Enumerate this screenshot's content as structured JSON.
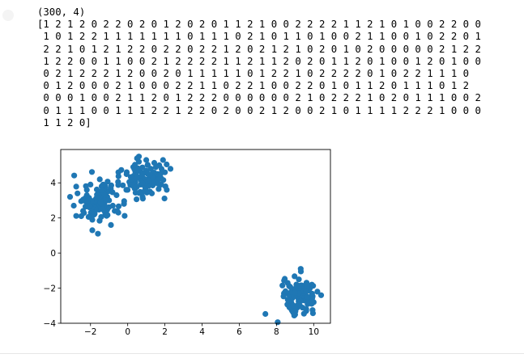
{
  "output": {
    "shape_line": "(300, 4)",
    "label_lines": [
      "[1 2 1 2 0 2 2 0 2 0 1 2 0 2 0 1 1 2 1 0 0 2 2 2 2 1 1 2 1 0 1 0 0 2 2 0 0",
      " 1 0 1 2 2 1 1 1 1 1 1 1 0 1 1 1 0 2 1 0 1 1 0 1 0 0 2 1 1 0 0 1 0 2 2 0 1",
      " 2 2 1 0 1 2 1 2 2 0 2 2 0 2 2 1 2 0 2 1 2 1 0 2 0 1 0 2 0 0 0 0 0 2 1 2 2",
      " 1 2 2 0 0 1 1 0 0 2 1 2 2 2 2 1 1 2 1 1 2 0 2 0 1 1 2 0 1 0 0 1 2 0 1 0 0",
      " 0 2 1 2 2 2 1 2 0 0 2 0 1 1 1 1 1 0 1 2 2 1 0 2 2 2 2 0 1 0 2 2 1 1 1 0",
      " 0 1 2 0 0 0 2 1 0 0 0 2 2 1 1 0 2 2 1 0 0 2 2 0 1 0 1 1 2 0 1 1 1 0 1 2",
      " 0 0 0 1 0 0 2 1 1 2 0 1 2 2 2 0 0 0 0 0 0 2 1 0 2 2 2 1 0 2 0 1 1 1 0 0 2",
      " 0 1 1 1 0 0 1 1 1 2 2 1 2 2 0 2 0 0 2 1 2 0 0 2 1 0 1 1 1 1 2 2 2 1 0 0 0",
      " 1 1 2 0]"
    ]
  },
  "chart_data": {
    "type": "scatter",
    "title": "",
    "xlabel": "",
    "ylabel": "",
    "xlim": [
      -3.6,
      10.9
    ],
    "ylim": [
      -4.0,
      5.9
    ],
    "xticks": [
      -2,
      0,
      2,
      4,
      6,
      8,
      10
    ],
    "yticks": [
      -4,
      -2,
      0,
      2,
      4
    ],
    "grid": false,
    "color": "#1f77b4",
    "clusters": [
      {
        "center": [
          -1.6,
          2.9
        ],
        "spread": [
          0.62,
          0.52
        ],
        "count": 100
      },
      {
        "center": [
          0.9,
          4.2
        ],
        "spread": [
          0.62,
          0.46
        ],
        "count": 100
      },
      {
        "center": [
          9.2,
          -2.4
        ],
        "spread": [
          0.42,
          0.44
        ],
        "count": 100
      }
    ],
    "x": [
      -3.1,
      -2.9,
      -2.7,
      -2.4,
      -2.2,
      -1.9,
      -1.7,
      -1.6,
      -1.4,
      -1.2,
      -1.0,
      -0.8,
      -0.6,
      -0.2,
      -2.5,
      -2.0,
      -1.5,
      -1.1,
      -0.9,
      -2.2,
      -1.8,
      -1.3,
      -1.9,
      -1.6,
      -0.7,
      0.2,
      0.4,
      0.6,
      0.8,
      1.0,
      1.2,
      1.5,
      1.8,
      2.0,
      2.3,
      0.5,
      0.9,
      1.3,
      1.7,
      2.1,
      0.3,
      0.7,
      1.1,
      1.4,
      0.8,
      0.6,
      1.0,
      1.9,
      -0.5,
      8.4,
      8.6,
      8.8,
      9.0,
      9.2,
      9.4,
      9.6,
      9.8,
      10.0,
      10.2,
      10.4,
      8.7,
      9.1,
      9.5,
      9.9,
      9.3,
      9.0,
      8.9,
      9.6,
      9.2
    ],
    "y": [
      3.2,
      2.7,
      3.4,
      2.4,
      3.6,
      1.9,
      3.1,
      2.5,
      3.8,
      2.2,
      3.0,
      2.7,
      3.3,
      2.8,
      2.1,
      3.9,
      4.2,
      3.5,
      1.6,
      3.3,
      2.2,
      2.9,
      1.3,
      1.1,
      2.4,
      4.3,
      3.7,
      5.2,
      4.0,
      4.7,
      3.5,
      4.4,
      3.9,
      4.6,
      4.8,
      5.4,
      4.1,
      3.4,
      5.0,
      3.6,
      4.9,
      3.9,
      4.5,
      4.2,
      3.2,
      5.5,
      5.3,
      5.3,
      4.6,
      -2.3,
      -1.7,
      -2.9,
      -2.1,
      -1.5,
      -2.6,
      -3.2,
      -2.0,
      -2.8,
      -2.2,
      -2.4,
      -3.1,
      -1.9,
      -2.7,
      -1.8,
      -0.9,
      -3.5,
      -2.5,
      -3.3,
      -2.1
    ]
  }
}
